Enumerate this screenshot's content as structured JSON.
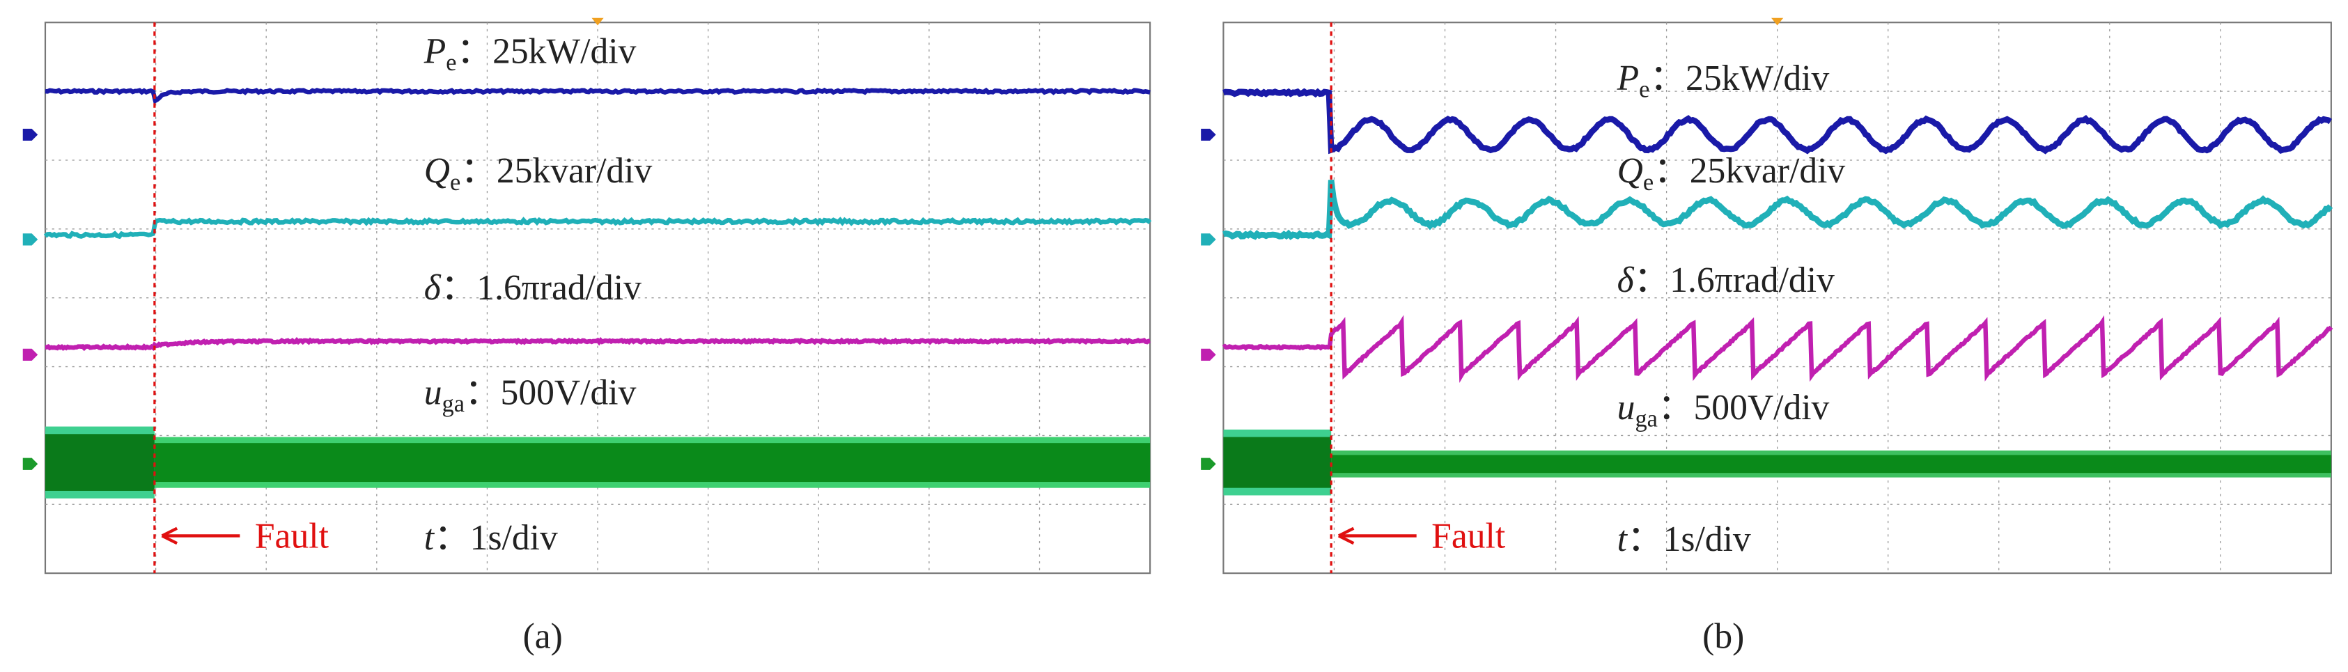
{
  "panels": [
    {
      "caption": "(a)",
      "channels": [
        {
          "symbol": "P",
          "sub": "e",
          "scale": "：25kW/div"
        },
        {
          "symbol": "Q",
          "sub": "e",
          "scale": "：25kvar/div"
        },
        {
          "symbol": "δ",
          "sub": "",
          "scale": "：1.6πrad/div"
        },
        {
          "symbol": "u",
          "sub": "ga",
          "scale": "：500V/div"
        }
      ],
      "time": {
        "symbol": "t",
        "scale": "：1s/div"
      },
      "fault": "Fault"
    },
    {
      "caption": "(b)",
      "channels": [
        {
          "symbol": "P",
          "sub": "e",
          "scale": "：25kW/div"
        },
        {
          "symbol": "Q",
          "sub": "e",
          "scale": "：25kvar/div"
        },
        {
          "symbol": "δ",
          "sub": "",
          "scale": "：1.6πrad/div"
        },
        {
          "symbol": "u",
          "sub": "ga",
          "scale": "：500V/div"
        }
      ],
      "time": {
        "symbol": "t",
        "scale": "：1s/div"
      },
      "fault": "Fault"
    }
  ]
}
